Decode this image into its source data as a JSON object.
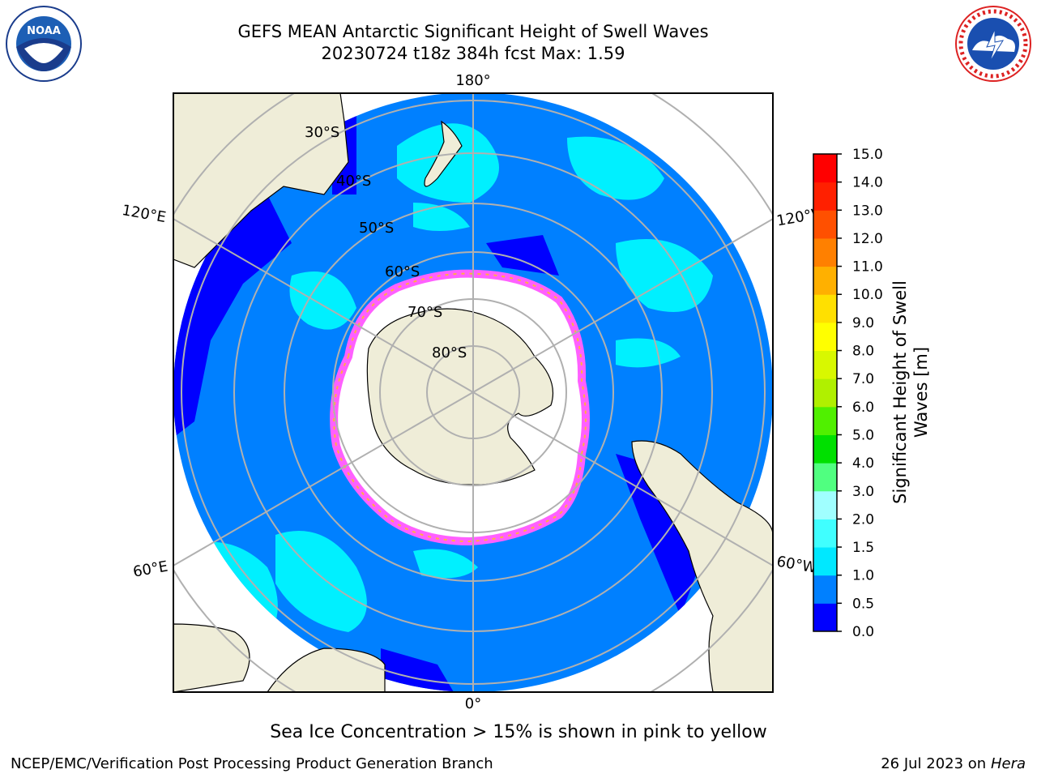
{
  "title_line1": "GEFS MEAN Antarctic Significant Height of Swell Waves",
  "title_line2": "20230724 t18z 384h fcst   Max: 1.59",
  "logos": {
    "left": "noaa-logo",
    "right": "nws-logo"
  },
  "map": {
    "longitude_labels": {
      "top": "180°",
      "bottom": "0°",
      "upper_left": "120°E",
      "upper_right": "120°W",
      "lower_left": "60°E",
      "lower_right": "60°W"
    },
    "latitude_labels": [
      "30°S",
      "40°S",
      "50°S",
      "60°S",
      "70°S",
      "80°S"
    ],
    "colors": {
      "land": "#efedd8",
      "ocean_low": "#0080ff",
      "ocean_verylow": "#0000ff",
      "swell_mid": "#00ffff",
      "ice": "#ffffff",
      "ice_edge": "#ff60ff"
    }
  },
  "colorbar": {
    "label_line1": "Significant Height of Swell",
    "label_line2": "Waves [m]",
    "ticks": [
      "0.0",
      "0.5",
      "1.0",
      "1.5",
      "2.0",
      "3.0",
      "4.0",
      "5.0",
      "6.0",
      "7.0",
      "8.0",
      "9.0",
      "10.0",
      "11.0",
      "12.0",
      "13.0",
      "14.0",
      "15.0"
    ],
    "colors": [
      "#0000ff",
      "#0080ff",
      "#00e8ff",
      "#40ffff",
      "#a0ffff",
      "#50ff80",
      "#00e000",
      "#50f000",
      "#b0f000",
      "#d8f800",
      "#ffff00",
      "#ffe000",
      "#ffb000",
      "#ff8000",
      "#ff5000",
      "#ff2000",
      "#ff0000"
    ]
  },
  "note": "Sea Ice Concentration > 15% is shown in pink to yellow",
  "footer_left": "NCEP/EMC/Verification Post Processing Product Generation Branch",
  "footer_right_date": "26 Jul 2023 on ",
  "footer_right_host": "Hera"
}
